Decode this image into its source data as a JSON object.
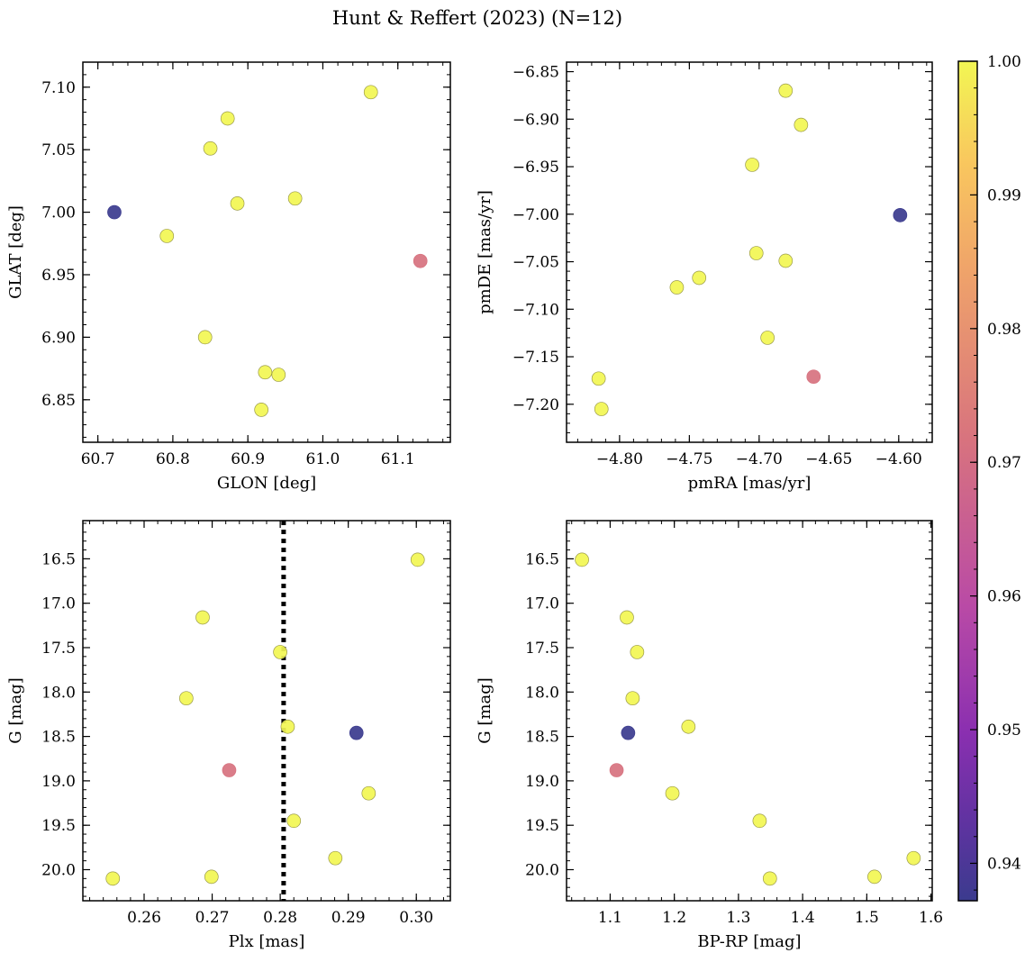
{
  "suptitle": "Hunt & Reffert (2023) (N=12)",
  "colorbar": {
    "colormap": "plasma",
    "vmin": 0.9372,
    "vmax": 1.0,
    "ticks": [
      0.94,
      0.95,
      0.96,
      0.97,
      0.98,
      0.99,
      1.0
    ],
    "tick_labels": [
      "0.94",
      "0.95",
      "0.96",
      "0.97",
      "0.98",
      "0.99",
      "1.00"
    ]
  },
  "chart_data": [
    {
      "type": "scatter",
      "title": "",
      "xlabel": "GLON [deg]",
      "ylabel": "GLAT [deg]",
      "xlim": [
        60.68,
        61.17
      ],
      "ylim": [
        6.816,
        7.12
      ],
      "y_inverted": false,
      "xticks": [
        60.7,
        60.8,
        60.9,
        61.0,
        61.1
      ],
      "xtick_labels": [
        "60.7",
        "60.8",
        "60.9",
        "61.0",
        "61.1"
      ],
      "yticks": [
        6.85,
        6.9,
        6.95,
        7.0,
        7.05,
        7.1
      ],
      "ytick_labels": [
        "6.85",
        "6.90",
        "6.95",
        "7.00",
        "7.05",
        "7.10"
      ],
      "points": [
        {
          "x": 61.064,
          "y": 7.096,
          "c": 1.0
        },
        {
          "x": 60.873,
          "y": 7.075,
          "c": 1.0
        },
        {
          "x": 60.85,
          "y": 7.051,
          "c": 1.0
        },
        {
          "x": 60.963,
          "y": 7.011,
          "c": 1.0
        },
        {
          "x": 60.886,
          "y": 7.007,
          "c": 1.0
        },
        {
          "x": 60.722,
          "y": 7.0,
          "c": 0.9372
        },
        {
          "x": 60.792,
          "y": 6.981,
          "c": 1.0
        },
        {
          "x": 61.13,
          "y": 6.961,
          "c": 0.9715
        },
        {
          "x": 60.843,
          "y": 6.9,
          "c": 1.0
        },
        {
          "x": 60.923,
          "y": 6.872,
          "c": 1.0
        },
        {
          "x": 60.941,
          "y": 6.87,
          "c": 1.0
        },
        {
          "x": 60.918,
          "y": 6.842,
          "c": 1.0
        }
      ]
    },
    {
      "type": "scatter",
      "title": "",
      "xlabel": "pmRA [mas/yr]",
      "ylabel": "pmDE [mas/yr]",
      "xlim": [
        -4.838,
        -4.576
      ],
      "ylim": [
        -7.24,
        -6.84
      ],
      "y_inverted": false,
      "xticks": [
        -4.8,
        -4.75,
        -4.7,
        -4.65,
        -4.6
      ],
      "xtick_labels": [
        "−4.80",
        "−4.75",
        "−4.70",
        "−4.65",
        "−4.60"
      ],
      "yticks": [
        -7.2,
        -7.15,
        -7.1,
        -7.05,
        -7.0,
        -6.95,
        -6.9,
        -6.85
      ],
      "ytick_labels": [
        "−7.20",
        "−7.15",
        "−7.10",
        "−7.05",
        "−7.00",
        "−6.95",
        "−6.90",
        "−6.85"
      ],
      "points": [
        {
          "x": -4.681,
          "y": -6.87,
          "c": 1.0
        },
        {
          "x": -4.67,
          "y": -6.906,
          "c": 1.0
        },
        {
          "x": -4.705,
          "y": -6.948,
          "c": 1.0
        },
        {
          "x": -4.599,
          "y": -7.001,
          "c": 0.9372
        },
        {
          "x": -4.702,
          "y": -7.041,
          "c": 1.0
        },
        {
          "x": -4.681,
          "y": -7.049,
          "c": 1.0
        },
        {
          "x": -4.743,
          "y": -7.067,
          "c": 1.0
        },
        {
          "x": -4.759,
          "y": -7.077,
          "c": 1.0
        },
        {
          "x": -4.694,
          "y": -7.13,
          "c": 1.0
        },
        {
          "x": -4.661,
          "y": -7.171,
          "c": 0.9715
        },
        {
          "x": -4.815,
          "y": -7.173,
          "c": 1.0
        },
        {
          "x": -4.813,
          "y": -7.205,
          "c": 1.0
        }
      ]
    },
    {
      "type": "scatter",
      "title": "",
      "xlabel": "Plx [mas]",
      "ylabel": "G [mag]",
      "xlim": [
        0.251,
        0.305
      ],
      "ylim": [
        20.35,
        16.07
      ],
      "y_inverted": true,
      "xticks": [
        0.26,
        0.27,
        0.28,
        0.29,
        0.3
      ],
      "xtick_labels": [
        "0.26",
        "0.27",
        "0.28",
        "0.29",
        "0.30"
      ],
      "yticks": [
        16.5,
        17.0,
        17.5,
        18.0,
        18.5,
        19.0,
        19.5,
        20.0
      ],
      "ytick_labels": [
        "16.5",
        "17.0",
        "17.5",
        "18.0",
        "18.5",
        "19.0",
        "19.5",
        "20.0"
      ],
      "vline": {
        "x": 0.2805,
        "style": "dotted",
        "color": "#000000"
      },
      "points": [
        {
          "x": 0.3002,
          "y": 16.51,
          "c": 1.0
        },
        {
          "x": 0.2686,
          "y": 17.16,
          "c": 1.0
        },
        {
          "x": 0.28,
          "y": 17.55,
          "c": 1.0
        },
        {
          "x": 0.2662,
          "y": 18.07,
          "c": 1.0
        },
        {
          "x": 0.2811,
          "y": 18.39,
          "c": 1.0
        },
        {
          "x": 0.2912,
          "y": 18.46,
          "c": 0.9372
        },
        {
          "x": 0.2725,
          "y": 18.88,
          "c": 0.9715
        },
        {
          "x": 0.293,
          "y": 19.14,
          "c": 1.0
        },
        {
          "x": 0.282,
          "y": 19.45,
          "c": 1.0
        },
        {
          "x": 0.2881,
          "y": 19.87,
          "c": 1.0
        },
        {
          "x": 0.2699,
          "y": 20.08,
          "c": 1.0
        },
        {
          "x": 0.2554,
          "y": 20.1,
          "c": 1.0
        }
      ]
    },
    {
      "type": "scatter",
      "title": "",
      "xlabel": "BP-RP [mag]",
      "ylabel": "G [mag]",
      "xlim": [
        1.032,
        1.602
      ],
      "ylim": [
        20.35,
        16.07
      ],
      "y_inverted": true,
      "xticks": [
        1.1,
        1.2,
        1.3,
        1.4,
        1.5,
        1.6
      ],
      "xtick_labels": [
        "1.1",
        "1.2",
        "1.3",
        "1.4",
        "1.5",
        "1.6"
      ],
      "yticks": [
        16.5,
        17.0,
        17.5,
        18.0,
        18.5,
        19.0,
        19.5,
        20.0
      ],
      "ytick_labels": [
        "16.5",
        "17.0",
        "17.5",
        "18.0",
        "18.5",
        "19.0",
        "19.5",
        "20.0"
      ],
      "points": [
        {
          "x": 1.056,
          "y": 16.51,
          "c": 1.0
        },
        {
          "x": 1.126,
          "y": 17.16,
          "c": 1.0
        },
        {
          "x": 1.142,
          "y": 17.55,
          "c": 1.0
        },
        {
          "x": 1.135,
          "y": 18.07,
          "c": 1.0
        },
        {
          "x": 1.222,
          "y": 18.39,
          "c": 1.0
        },
        {
          "x": 1.128,
          "y": 18.46,
          "c": 0.9372
        },
        {
          "x": 1.11,
          "y": 18.88,
          "c": 0.9715
        },
        {
          "x": 1.197,
          "y": 19.14,
          "c": 1.0
        },
        {
          "x": 1.333,
          "y": 19.45,
          "c": 1.0
        },
        {
          "x": 1.573,
          "y": 19.87,
          "c": 1.0
        },
        {
          "x": 1.512,
          "y": 20.08,
          "c": 1.0
        },
        {
          "x": 1.349,
          "y": 20.1,
          "c": 1.0
        }
      ]
    }
  ]
}
